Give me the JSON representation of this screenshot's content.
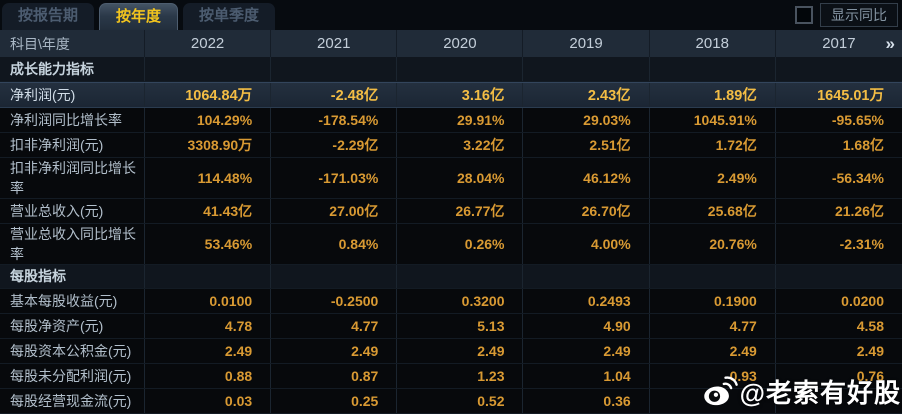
{
  "tabs": [
    {
      "label": "按报告期",
      "active": false
    },
    {
      "label": "按年度",
      "active": true
    },
    {
      "label": "按单季度",
      "active": false
    }
  ],
  "controls": {
    "show_yoy_label": "显示同比",
    "checkbox_checked": false
  },
  "table": {
    "corner_label": "科目\\年度",
    "years": [
      "2022",
      "2021",
      "2020",
      "2019",
      "2018",
      "2017"
    ],
    "more_icon": "»",
    "rows": [
      {
        "type": "section",
        "label": "成长能力指标"
      },
      {
        "type": "data",
        "label": "净利润(元)",
        "highlight": true,
        "values": [
          "1064.84万",
          "-2.48亿",
          "3.16亿",
          "2.43亿",
          "1.89亿",
          "1645.01万"
        ]
      },
      {
        "type": "data",
        "label": "净利润同比增长率",
        "values": [
          "104.29%",
          "-178.54%",
          "29.91%",
          "29.03%",
          "1045.91%",
          "-95.65%"
        ]
      },
      {
        "type": "data",
        "label": "扣非净利润(元)",
        "values": [
          "3308.90万",
          "-2.29亿",
          "3.22亿",
          "2.51亿",
          "1.72亿",
          "1.68亿"
        ]
      },
      {
        "type": "data",
        "label": "扣非净利润同比增长率",
        "values": [
          "114.48%",
          "-171.03%",
          "28.04%",
          "46.12%",
          "2.49%",
          "-56.34%"
        ]
      },
      {
        "type": "data",
        "label": "营业总收入(元)",
        "values": [
          "41.43亿",
          "27.00亿",
          "26.77亿",
          "26.70亿",
          "25.68亿",
          "21.26亿"
        ]
      },
      {
        "type": "data",
        "label": "营业总收入同比增长率",
        "values": [
          "53.46%",
          "0.84%",
          "0.26%",
          "4.00%",
          "20.76%",
          "-2.31%"
        ]
      },
      {
        "type": "section",
        "label": "每股指标"
      },
      {
        "type": "data",
        "label": "基本每股收益(元)",
        "values": [
          "0.0100",
          "-0.2500",
          "0.3200",
          "0.2493",
          "0.1900",
          "0.0200"
        ]
      },
      {
        "type": "data",
        "label": "每股净资产(元)",
        "values": [
          "4.78",
          "4.77",
          "5.13",
          "4.90",
          "4.77",
          "4.58"
        ]
      },
      {
        "type": "data",
        "label": "每股资本公积金(元)",
        "values": [
          "2.49",
          "2.49",
          "2.49",
          "2.49",
          "2.49",
          "2.49"
        ]
      },
      {
        "type": "data",
        "label": "每股未分配利润(元)",
        "values": [
          "0.88",
          "0.87",
          "1.23",
          "1.04",
          "0.93",
          "0.76"
        ]
      },
      {
        "type": "data",
        "label": "每股经营现金流(元)",
        "values": [
          "0.03",
          "0.25",
          "0.52",
          "0.36",
          "",
          ""
        ]
      }
    ]
  },
  "watermark": {
    "icon": "weibo-icon",
    "handle": "@老索有好股"
  },
  "colors": {
    "accent_yellow": "#f2c41e",
    "value_orange": "#d99a33",
    "highlight_value_yellow": "#f3bd45",
    "header_bg": "#202b38",
    "highlight_row_bg": "#1d2a3a",
    "section_row_bg": "#10161e",
    "data_row_bg": "#07090c",
    "page_bg": "#06090d",
    "label_text": "#b2bfcb"
  }
}
